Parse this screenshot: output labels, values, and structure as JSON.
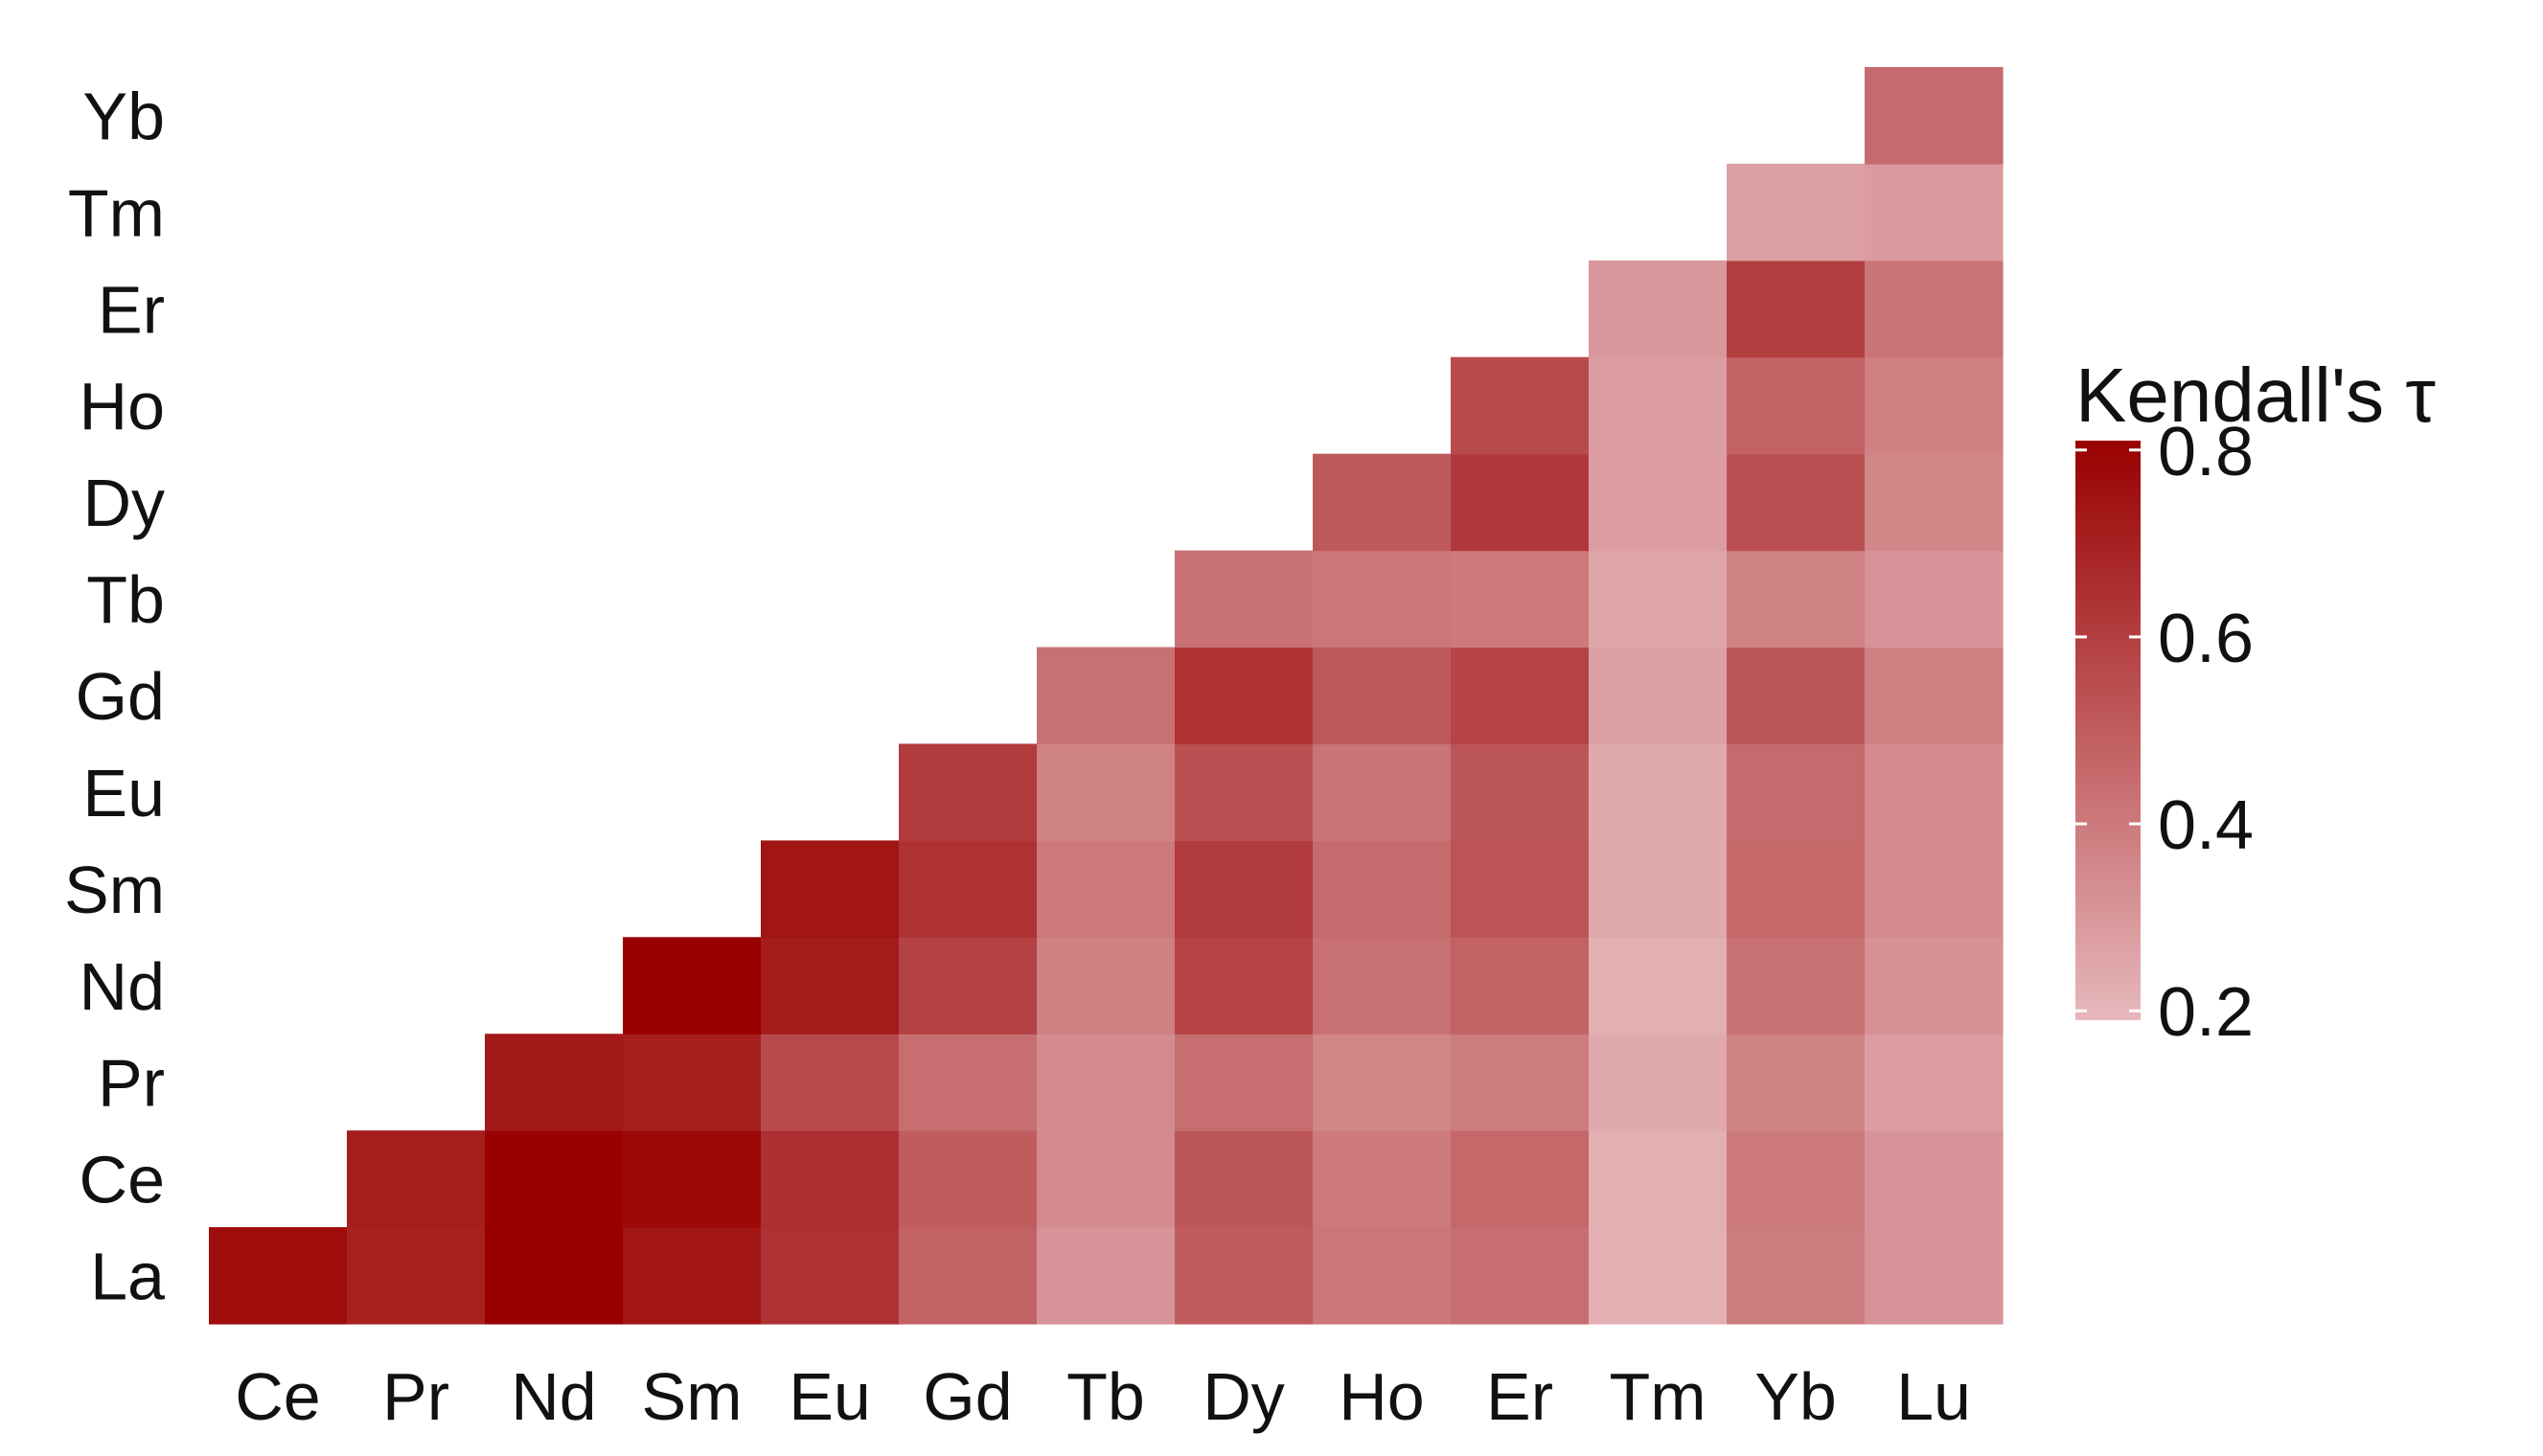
{
  "chart_data": {
    "type": "heatmap",
    "title": "",
    "xlabel": "",
    "ylabel": "",
    "x_categories": [
      "Ce",
      "Pr",
      "Nd",
      "Sm",
      "Eu",
      "Gd",
      "Tb",
      "Dy",
      "Ho",
      "Er",
      "Tm",
      "Yb",
      "Lu"
    ],
    "y_categories": [
      "La",
      "Ce",
      "Pr",
      "Nd",
      "Sm",
      "Eu",
      "Gd",
      "Tb",
      "Dy",
      "Ho",
      "Er",
      "Tm",
      "Yb"
    ],
    "layout": "lower-triangle",
    "legend": {
      "title": "Kendall's τ",
      "position": "right",
      "range": [
        0.19,
        0.81
      ],
      "ticks": [
        0.2,
        0.4,
        0.6,
        0.8
      ],
      "tick_labels": [
        "0.2",
        "0.4",
        "0.6",
        "0.8"
      ],
      "color_low": "#e6b8bc",
      "color_high": "#990000"
    },
    "grid": false,
    "values": [
      {
        "row": "La",
        "cols": [
          0.77,
          0.7,
          0.81,
          0.74,
          0.64,
          0.48,
          0.31,
          0.5,
          0.41,
          0.44,
          0.22,
          0.39,
          0.31
        ]
      },
      {
        "row": "Ce",
        "cols": [
          null,
          0.71,
          0.81,
          0.78,
          0.65,
          0.5,
          0.34,
          0.52,
          0.4,
          0.46,
          0.22,
          0.4,
          0.31
        ]
      },
      {
        "row": "Pr",
        "cols": [
          null,
          null,
          0.73,
          0.71,
          0.56,
          0.44,
          0.34,
          0.44,
          0.36,
          0.39,
          0.24,
          0.37,
          0.28
        ]
      },
      {
        "row": "Nd",
        "cols": [
          null,
          null,
          null,
          0.81,
          0.72,
          0.59,
          0.38,
          0.58,
          0.43,
          0.48,
          0.22,
          0.43,
          0.32
        ]
      },
      {
        "row": "Sm",
        "cols": [
          null,
          null,
          null,
          null,
          0.74,
          0.64,
          0.4,
          0.61,
          0.45,
          0.53,
          0.24,
          0.46,
          0.34
        ]
      },
      {
        "row": "Eu",
        "cols": [
          null,
          null,
          null,
          null,
          null,
          0.61,
          0.37,
          0.54,
          0.42,
          0.52,
          0.24,
          0.45,
          0.34
        ]
      },
      {
        "row": "Gd",
        "cols": [
          null,
          null,
          null,
          null,
          null,
          null,
          0.43,
          0.64,
          0.51,
          0.58,
          0.27,
          0.52,
          0.38
        ]
      },
      {
        "row": "Tb",
        "cols": [
          null,
          null,
          null,
          null,
          null,
          null,
          null,
          0.43,
          0.41,
          0.4,
          0.25,
          0.37,
          0.31
        ]
      },
      {
        "row": "Dy",
        "cols": [
          null,
          null,
          null,
          null,
          null,
          null,
          null,
          null,
          0.51,
          0.62,
          0.28,
          0.54,
          0.36
        ]
      },
      {
        "row": "Ho",
        "cols": [
          null,
          null,
          null,
          null,
          null,
          null,
          null,
          null,
          null,
          0.56,
          0.28,
          0.48,
          0.38
        ]
      },
      {
        "row": "Er",
        "cols": [
          null,
          null,
          null,
          null,
          null,
          null,
          null,
          null,
          null,
          null,
          0.3,
          0.6,
          0.42
        ]
      },
      {
        "row": "Tm",
        "cols": [
          null,
          null,
          null,
          null,
          null,
          null,
          null,
          null,
          null,
          null,
          null,
          0.27,
          0.29
        ]
      },
      {
        "row": "Yb",
        "cols": [
          null,
          null,
          null,
          null,
          null,
          null,
          null,
          null,
          null,
          null,
          null,
          null,
          0.45
        ]
      }
    ]
  }
}
